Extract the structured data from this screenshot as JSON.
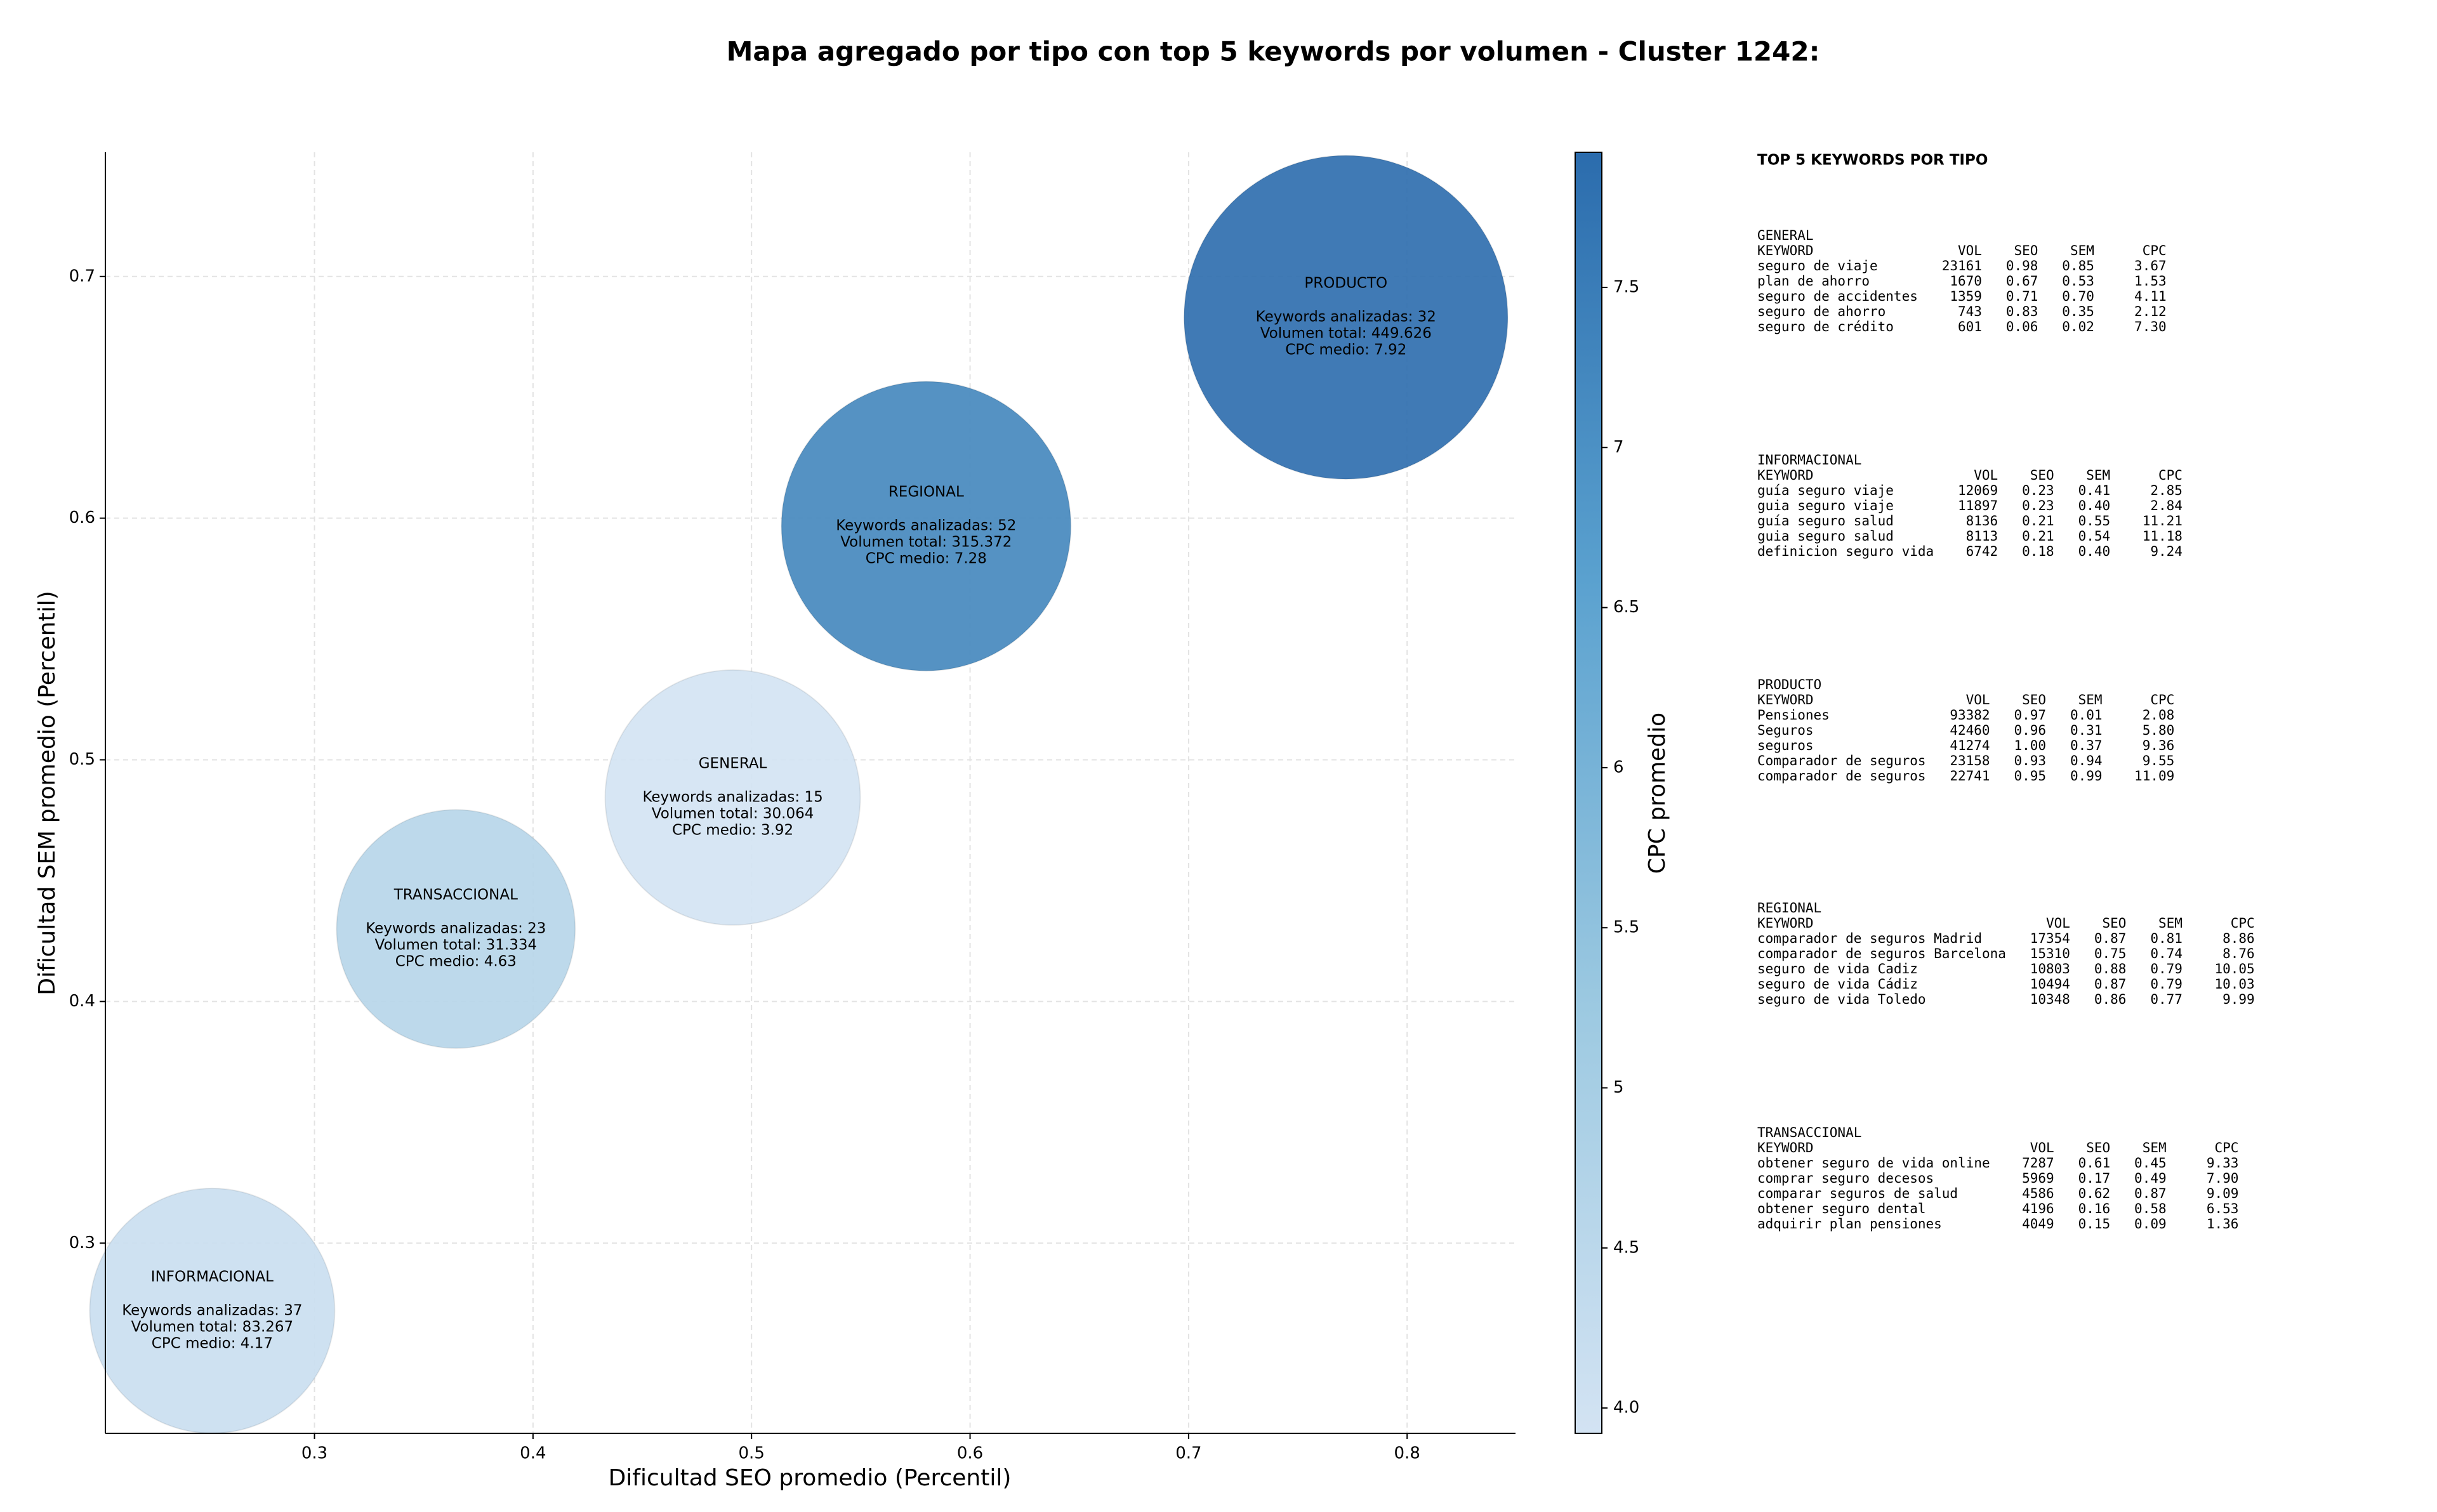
{
  "chart_data": {
    "type": "bubble",
    "title": "Mapa agregado por tipo con top 5 keywords por volumen - Cluster 1242:",
    "xlabel": "Dificultad SEO promedio (Percentil)",
    "ylabel": "Dificultad SEM promedio (Percentil)",
    "colorbar_label": "CPC promedio",
    "x": [
      0.2532,
      0.3647,
      0.4914,
      0.5799,
      0.772
    ],
    "y": [
      0.272,
      0.43,
      0.4844,
      0.5967,
      0.6831
    ],
    "sizes": [
      37249,
      35344,
      40401,
      51984,
      65025
    ],
    "color_values": [
      4.17,
      4.63,
      3.92,
      7.28,
      7.92
    ],
    "annotations": [
      [
        "INFORMACIONAL",
        "Keywords analizadas: 37",
        "Volumen total: 83.267",
        "CPC medio: 4.17"
      ],
      [
        "TRANSACCIONAL",
        "Keywords analizadas: 23",
        "Volumen total: 31.334",
        "CPC medio: 4.63"
      ],
      [
        "GENERAL",
        "Keywords analizadas: 15",
        "Volumen total: 30.064",
        "CPC medio: 3.92"
      ],
      [
        "REGIONAL",
        "Keywords analizadas: 52",
        "Volumen total: 315.372",
        "CPC medio: 7.28"
      ],
      [
        "PRODUCTO",
        "Keywords analizadas: 32",
        "Volumen total: 449.626",
        "CPC medio: 7.92"
      ]
    ],
    "xlim": [
      0.2043,
      0.8496
    ],
    "ylim": [
      0.2213,
      0.7514
    ],
    "xticks": [
      0.3,
      0.4,
      0.5,
      0.6,
      0.7,
      0.8
    ],
    "yticks": [
      0.3,
      0.4,
      0.5,
      0.6,
      0.7
    ],
    "clim": [
      3.921,
      7.922
    ],
    "cticks": [
      {
        "value": 4.0,
        "label": "4.0"
      },
      4.5,
      5.0,
      5.5,
      6.0,
      6.5,
      7.0,
      7.5
    ],
    "colormap": [
      "#d3e3f3",
      "#9cc9e1",
      "#5aa1cf",
      "#2b6cad"
    ],
    "grid": true
  },
  "keyword_tables": {
    "title": "TOP 5 KEYWORDS POR TIPO",
    "columns": [
      "KEYWORD",
      "VOL",
      "SEO",
      "SEM",
      "CPC"
    ],
    "blocks": [
      {
        "name": "GENERAL",
        "rows": [
          [
            "seguro de viaje",
            "23161",
            "0.98",
            "0.85",
            "3.67"
          ],
          [
            "plan de ahorro",
            "1670",
            "0.67",
            "0.53",
            "1.53"
          ],
          [
            "seguro de accidentes",
            "1359",
            "0.71",
            "0.70",
            "4.11"
          ],
          [
            "seguro de ahorro",
            "743",
            "0.83",
            "0.35",
            "2.12"
          ],
          [
            "seguro de crédito",
            "601",
            "0.06",
            "0.02",
            "7.30"
          ]
        ]
      },
      {
        "name": "INFORMACIONAL",
        "rows": [
          [
            "guía seguro viaje",
            "12069",
            "0.23",
            "0.41",
            "2.85"
          ],
          [
            "guia seguro viaje",
            "11897",
            "0.23",
            "0.40",
            "2.84"
          ],
          [
            "guía seguro salud",
            "8136",
            "0.21",
            "0.55",
            "11.21"
          ],
          [
            "guia seguro salud",
            "8113",
            "0.21",
            "0.54",
            "11.18"
          ],
          [
            "definicion seguro vida",
            "6742",
            "0.18",
            "0.40",
            "9.24"
          ]
        ]
      },
      {
        "name": "PRODUCTO",
        "rows": [
          [
            "Pensiones",
            "93382",
            "0.97",
            "0.01",
            "2.08"
          ],
          [
            "Seguros",
            "42460",
            "0.96",
            "0.31",
            "5.80"
          ],
          [
            "seguros",
            "41274",
            "1.00",
            "0.37",
            "9.36"
          ],
          [
            "Comparador de seguros",
            "23158",
            "0.93",
            "0.94",
            "9.55"
          ],
          [
            "comparador de seguros",
            "22741",
            "0.95",
            "0.99",
            "11.09"
          ]
        ]
      },
      {
        "name": "REGIONAL",
        "rows": [
          [
            "comparador de seguros Madrid",
            "17354",
            "0.87",
            "0.81",
            "8.86"
          ],
          [
            "comparador de seguros Barcelona",
            "15310",
            "0.75",
            "0.74",
            "8.76"
          ],
          [
            "seguro de vida Cadiz",
            "10803",
            "0.88",
            "0.79",
            "10.05"
          ],
          [
            "seguro de vida Cádiz",
            "10494",
            "0.87",
            "0.79",
            "10.03"
          ],
          [
            "seguro de vida Toledo",
            "10348",
            "0.86",
            "0.77",
            "9.99"
          ]
        ]
      },
      {
        "name": "TRANSACCIONAL",
        "rows": [
          [
            "obtener seguro de vida online",
            "7287",
            "0.61",
            "0.45",
            "9.33"
          ],
          [
            "comprar seguro decesos",
            "5969",
            "0.17",
            "0.49",
            "7.90"
          ],
          [
            "comparar seguros de salud",
            "4586",
            "0.62",
            "0.87",
            "9.09"
          ],
          [
            "obtener seguro dental",
            "4196",
            "0.16",
            "0.58",
            "6.53"
          ],
          [
            "adquirir plan pensiones",
            "4049",
            "0.15",
            "0.09",
            "1.36"
          ]
        ]
      }
    ]
  }
}
